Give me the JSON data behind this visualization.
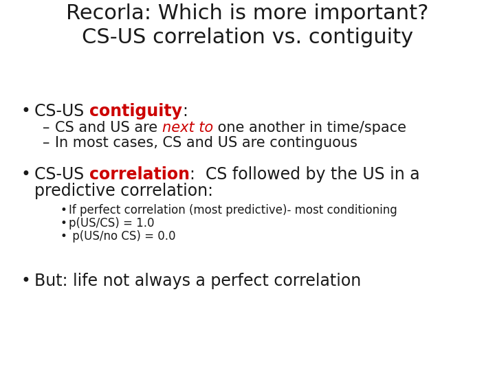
{
  "background_color": "#ffffff",
  "title_line1": "Recorla: Which is more important?",
  "title_line2": "CS-US correlation vs. contiguity",
  "title_fontsize": 22,
  "title_color": "#1a1a1a",
  "bullet1_fontsize": 17,
  "sub1_fontsize": 15,
  "bullet2_fontsize": 17,
  "sub2_fontsize": 12,
  "bullet3_fontsize": 17,
  "text_color": "#1a1a1a",
  "red_color": "#cc0000",
  "sub1a_prefix": "CS and US are ",
  "sub1a_italic_red": "next to",
  "sub1a_suffix": " one another in time/space",
  "sub1b": "In most cases, CS and US are continguous",
  "sub2a": "If perfect correlation (most predictive)- most conditioning",
  "sub2b": "p(US/CS) = 1.0",
  "sub2c": " p(US/no CS) = 0.0",
  "bullet3": "But: life not always a perfect correlation"
}
